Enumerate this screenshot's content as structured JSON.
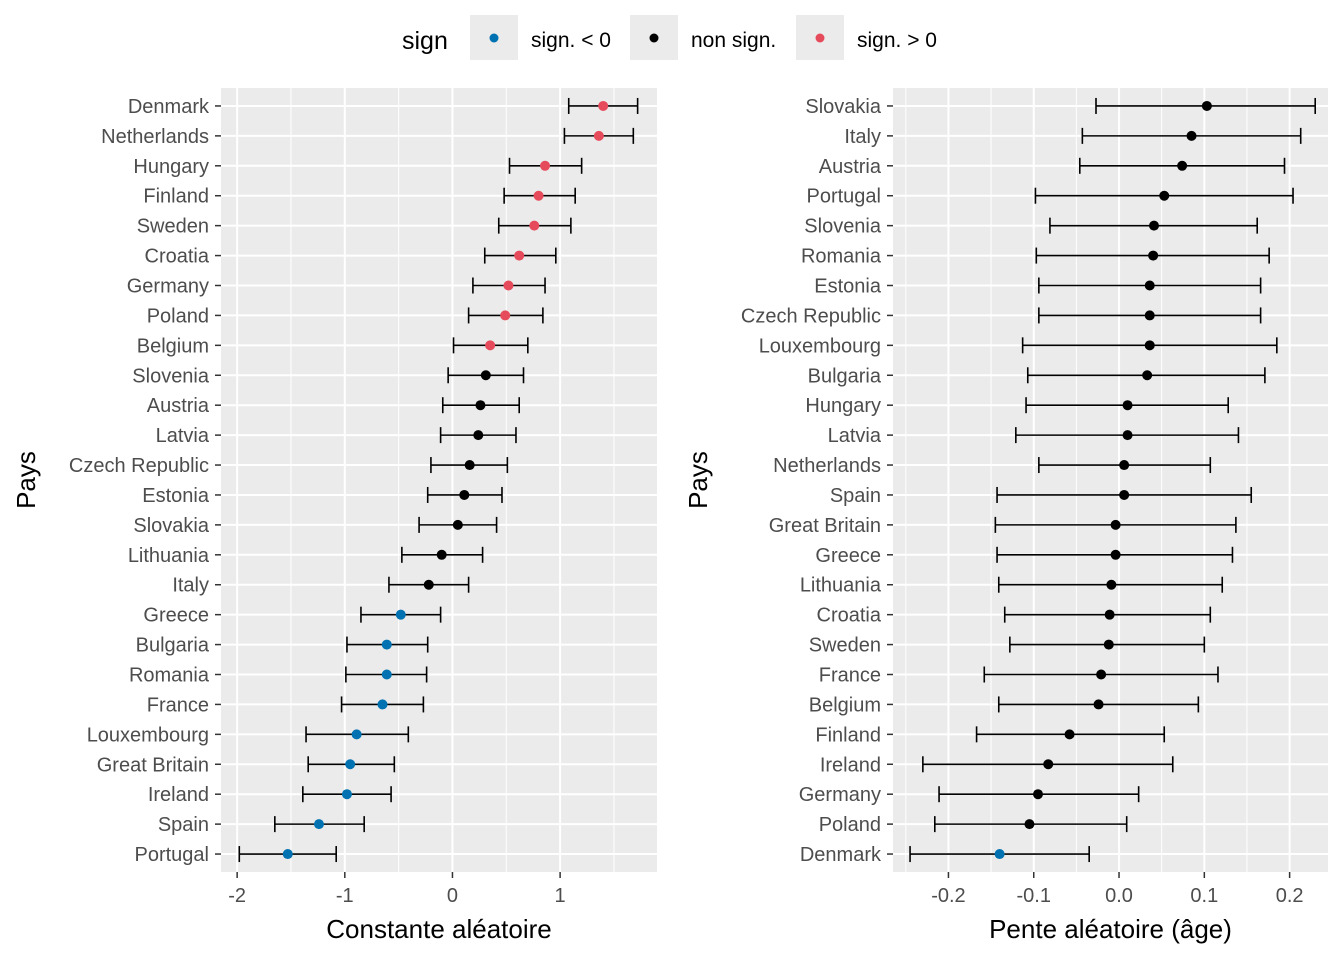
{
  "legend": {
    "title": "sign",
    "items": [
      {
        "label": "sign. < 0",
        "color": "#0072B2"
      },
      {
        "label": "non sign.",
        "color": "#000000"
      },
      {
        "label": "sign. > 0",
        "color": "#E64B5B"
      }
    ]
  },
  "chart_data": [
    {
      "type": "scatter",
      "subtype": "dot-errorbar",
      "xlabel": "Constante aléatoire",
      "ylabel": "Pays",
      "xlim": [
        -2.15,
        1.9
      ],
      "xticks": [
        -2,
        -1,
        0,
        1
      ],
      "xtick_labels": [
        "-2",
        "-1",
        "0",
        "1"
      ],
      "grid": true,
      "categories": [
        "Denmark",
        "Netherlands",
        "Hungary",
        "Finland",
        "Sweden",
        "Croatia",
        "Germany",
        "Poland",
        "Belgium",
        "Slovenia",
        "Austria",
        "Latvia",
        "Czech Republic",
        "Estonia",
        "Slovakia",
        "Lithuania",
        "Italy",
        "Greece",
        "Bulgaria",
        "Romania",
        "France",
        "Louxembourg",
        "Great Britain",
        "Ireland",
        "Spain",
        "Portugal"
      ],
      "estimates": [
        1.4,
        1.36,
        0.86,
        0.8,
        0.76,
        0.62,
        0.52,
        0.49,
        0.35,
        0.31,
        0.26,
        0.24,
        0.16,
        0.11,
        0.05,
        -0.1,
        -0.22,
        -0.48,
        -0.61,
        -0.61,
        -0.65,
        -0.89,
        -0.95,
        -0.98,
        -1.24,
        -1.53
      ],
      "lower": [
        1.08,
        1.04,
        0.53,
        0.48,
        0.43,
        0.3,
        0.19,
        0.15,
        0.01,
        -0.04,
        -0.09,
        -0.11,
        -0.2,
        -0.23,
        -0.31,
        -0.47,
        -0.59,
        -0.85,
        -0.98,
        -0.99,
        -1.03,
        -1.36,
        -1.34,
        -1.39,
        -1.65,
        -1.98
      ],
      "upper": [
        1.72,
        1.68,
        1.2,
        1.14,
        1.1,
        0.96,
        0.86,
        0.84,
        0.7,
        0.66,
        0.62,
        0.59,
        0.51,
        0.46,
        0.41,
        0.28,
        0.15,
        -0.11,
        -0.23,
        -0.24,
        -0.27,
        -0.41,
        -0.54,
        -0.57,
        -0.82,
        -1.08
      ],
      "sign": [
        "pos",
        "pos",
        "pos",
        "pos",
        "pos",
        "pos",
        "pos",
        "pos",
        "pos",
        "ns",
        "ns",
        "ns",
        "ns",
        "ns",
        "ns",
        "ns",
        "ns",
        "neg",
        "neg",
        "neg",
        "neg",
        "neg",
        "neg",
        "neg",
        "neg",
        "neg"
      ]
    },
    {
      "type": "scatter",
      "subtype": "dot-errorbar",
      "xlabel": "Pente aléatoire (âge)",
      "ylabel": "Pays",
      "xlim": [
        -0.265,
        0.245
      ],
      "xticks": [
        -0.2,
        -0.1,
        0.0,
        0.1,
        0.2
      ],
      "xtick_labels": [
        "-0.2",
        "-0.1",
        "0.0",
        "0.1",
        "0.2"
      ],
      "grid": true,
      "categories": [
        "Slovakia",
        "Italy",
        "Austria",
        "Portugal",
        "Slovenia",
        "Romania",
        "Estonia",
        "Czech Republic",
        "Louxembourg",
        "Bulgaria",
        "Hungary",
        "Latvia",
        "Netherlands",
        "Spain",
        "Great Britain",
        "Greece",
        "Lithuania",
        "Croatia",
        "Sweden",
        "France",
        "Belgium",
        "Finland",
        "Ireland",
        "Germany",
        "Poland",
        "Denmark"
      ],
      "estimates": [
        0.103,
        0.085,
        0.074,
        0.053,
        0.041,
        0.04,
        0.036,
        0.036,
        0.036,
        0.033,
        0.01,
        0.01,
        0.006,
        0.006,
        -0.004,
        -0.004,
        -0.009,
        -0.011,
        -0.012,
        -0.021,
        -0.024,
        -0.058,
        -0.083,
        -0.095,
        -0.105,
        -0.14
      ],
      "lower": [
        -0.027,
        -0.043,
        -0.046,
        -0.098,
        -0.081,
        -0.097,
        -0.094,
        -0.094,
        -0.113,
        -0.107,
        -0.109,
        -0.121,
        -0.094,
        -0.143,
        -0.145,
        -0.143,
        -0.141,
        -0.134,
        -0.128,
        -0.158,
        -0.141,
        -0.167,
        -0.23,
        -0.211,
        -0.216,
        -0.245
      ],
      "upper": [
        0.23,
        0.213,
        0.194,
        0.204,
        0.162,
        0.176,
        0.166,
        0.166,
        0.185,
        0.171,
        0.128,
        0.14,
        0.107,
        0.155,
        0.137,
        0.133,
        0.121,
        0.107,
        0.1,
        0.116,
        0.093,
        0.053,
        0.063,
        0.023,
        0.009,
        -0.035
      ],
      "sign": [
        "ns",
        "ns",
        "ns",
        "ns",
        "ns",
        "ns",
        "ns",
        "ns",
        "ns",
        "ns",
        "ns",
        "ns",
        "ns",
        "ns",
        "ns",
        "ns",
        "ns",
        "ns",
        "ns",
        "ns",
        "ns",
        "ns",
        "ns",
        "ns",
        "ns",
        "neg"
      ]
    }
  ]
}
